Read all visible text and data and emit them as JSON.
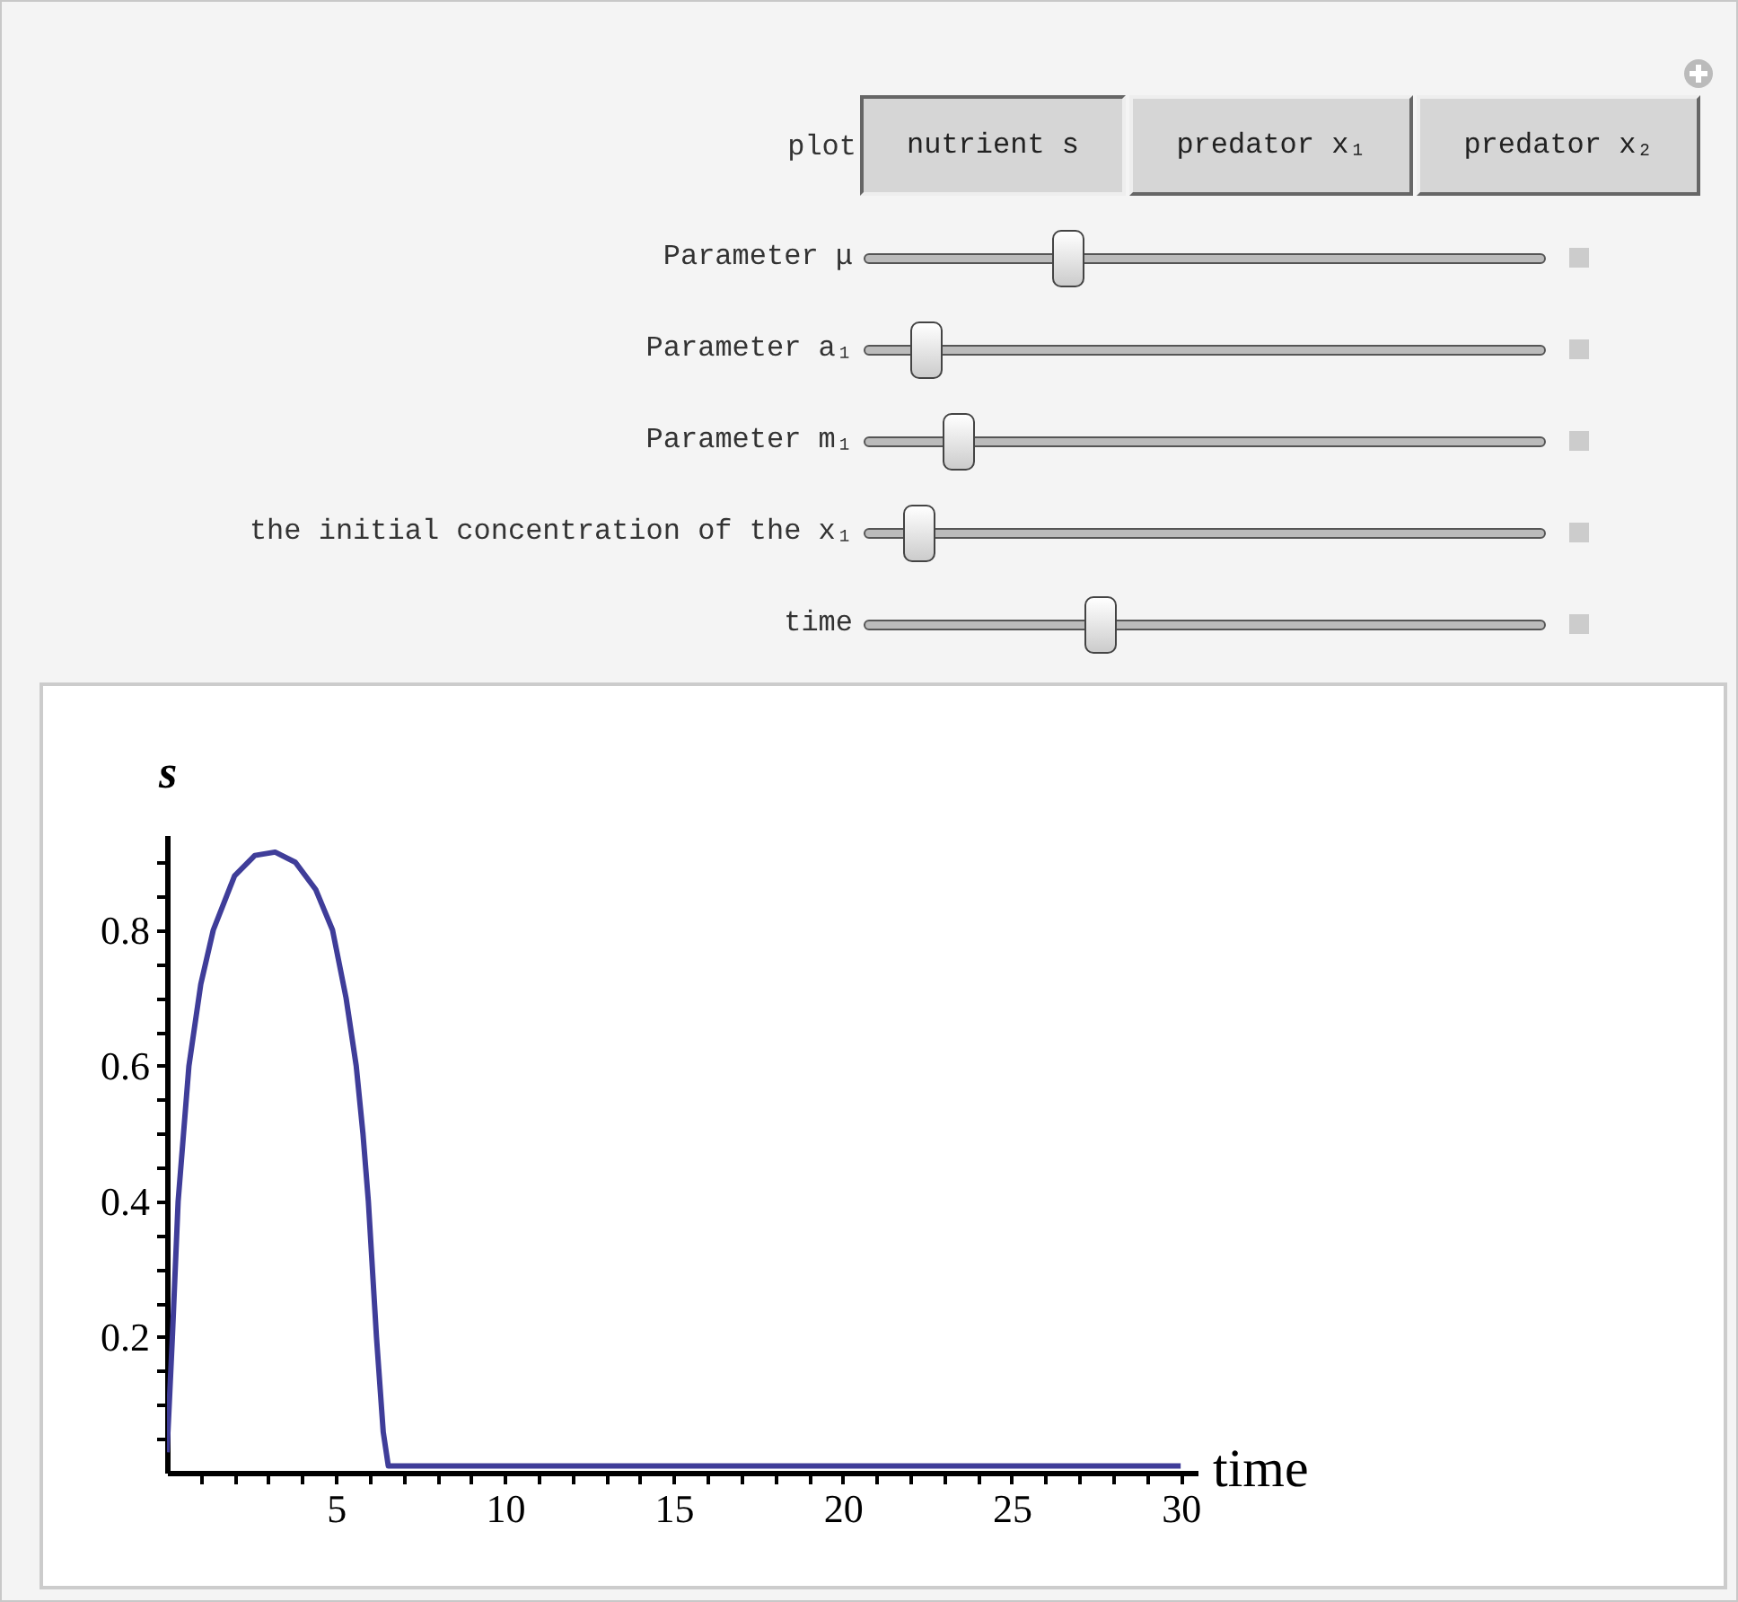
{
  "chart_data": [
    {
      "type": "other",
      "title": "plot",
      "categories": [
        "nutrient s",
        "predator x₁",
        "predator x₂"
      ],
      "annotations": [
        "Parameter μ",
        "Parameter a₁",
        "Parameter m₁",
        "the initial concentration of the x₁",
        "time"
      ]
    },
    {
      "type": "line",
      "xlabel": "time",
      "ylabel": "s",
      "xlim": [
        0,
        30.5
      ],
      "ylim": [
        0,
        0.94
      ],
      "xticks": [
        {
          "value": 1,
          "label": null
        },
        {
          "value": 2,
          "label": null
        },
        {
          "value": 3,
          "label": null
        },
        {
          "value": 4,
          "label": null
        },
        5,
        {
          "value": 6,
          "label": null
        },
        {
          "value": 7,
          "label": null
        },
        {
          "value": 8,
          "label": null
        },
        {
          "value": 9,
          "label": null
        },
        10,
        {
          "value": 11,
          "label": null
        },
        {
          "value": 12,
          "label": null
        },
        {
          "value": 13,
          "label": null
        },
        {
          "value": 14,
          "label": null
        },
        15,
        {
          "value": 16,
          "label": null
        },
        {
          "value": 17,
          "label": null
        },
        {
          "value": 18,
          "label": null
        },
        {
          "value": 19,
          "label": null
        },
        20,
        {
          "value": 21,
          "label": null
        },
        {
          "value": 22,
          "label": null
        },
        {
          "value": 23,
          "label": null
        },
        {
          "value": 24,
          "label": null
        },
        25,
        {
          "value": 26,
          "label": null
        },
        {
          "value": 27,
          "label": null
        },
        {
          "value": 28,
          "label": null
        },
        {
          "value": 29,
          "label": null
        },
        30
      ],
      "yticks": [
        {
          "value": 0.05,
          "label": null
        },
        {
          "value": 0.1,
          "label": null
        },
        {
          "value": 0.15,
          "label": null
        },
        0.2,
        {
          "value": 0.25,
          "label": null
        },
        {
          "value": 0.3,
          "label": null
        },
        {
          "value": 0.35,
          "label": null
        },
        0.4,
        {
          "value": 0.45,
          "label": null
        },
        {
          "value": 0.5,
          "label": null
        },
        {
          "value": 0.55,
          "label": null
        },
        0.6,
        {
          "value": 0.65,
          "label": null
        },
        {
          "value": 0.7,
          "label": null
        },
        {
          "value": 0.75,
          "label": null
        },
        0.8,
        {
          "value": 0.85,
          "label": null
        },
        {
          "value": 0.9,
          "label": null
        }
      ],
      "grid": false,
      "marker": "none",
      "line_style": "solid",
      "series": [
        {
          "color": "#3f3d99",
          "x": [
            0,
            0.16,
            0.33,
            0.65,
            1.0,
            1.37,
            2.0,
            2.6,
            3.2,
            3.8,
            4.4,
            4.9,
            5.3,
            5.6,
            5.8,
            5.96,
            6.2,
            6.4,
            6.55,
            30
          ],
          "values": [
            0.03,
            0.2,
            0.4,
            0.6,
            0.72,
            0.8,
            0.88,
            0.91,
            0.915,
            0.9,
            0.86,
            0.8,
            0.7,
            0.6,
            0.5,
            0.4,
            0.2,
            0.06,
            0.01,
            0.01
          ]
        }
      ]
    }
  ]
}
